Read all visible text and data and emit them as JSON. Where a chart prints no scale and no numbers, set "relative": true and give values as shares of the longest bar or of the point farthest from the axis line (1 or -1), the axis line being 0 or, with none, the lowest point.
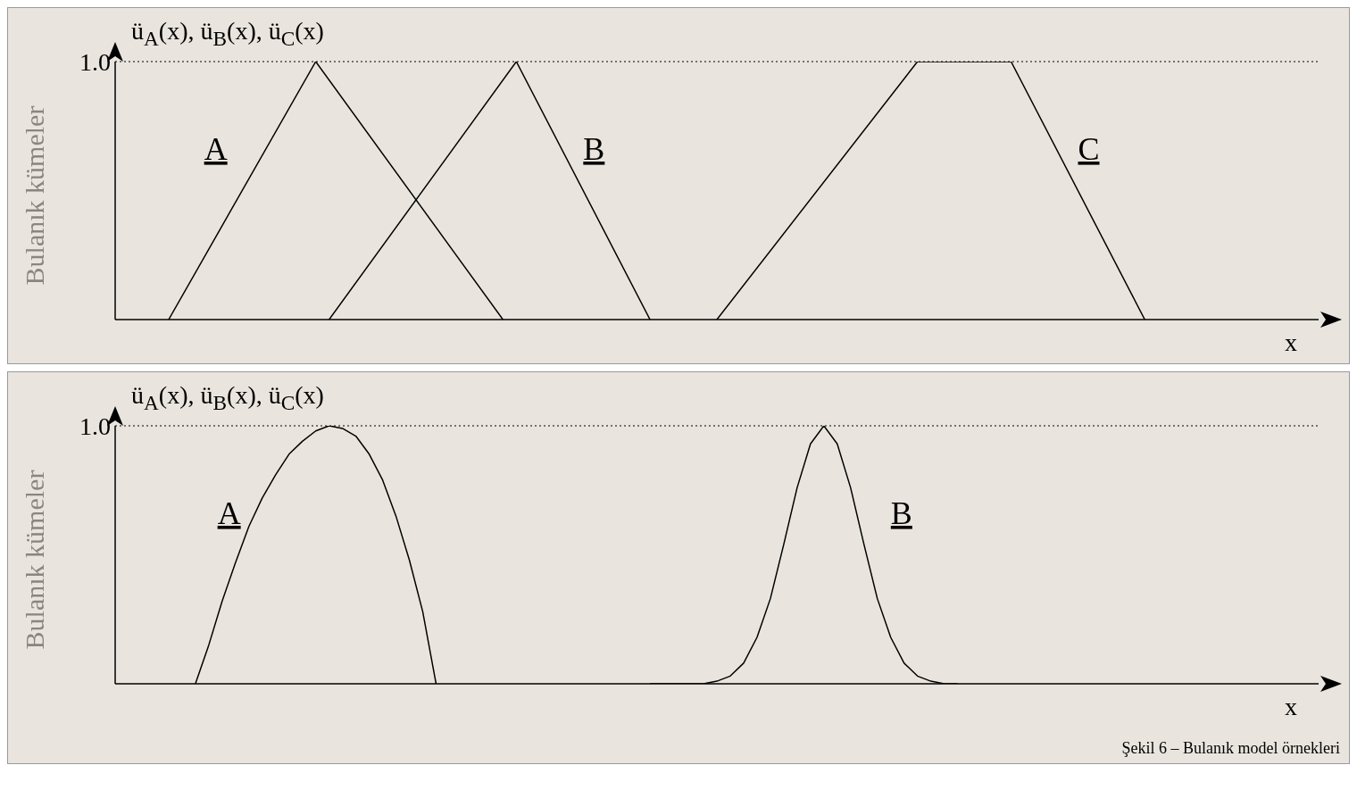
{
  "chart_data": [
    {
      "type": "line",
      "title": "Bulanık kümeler",
      "ylabel": "ü$_{A}$(x), ü$_{B}$(x), ü$_{C}$(x)",
      "xlabel": "x",
      "relative": true,
      "grid": false,
      "legend": false,
      "marker": "none",
      "line_style": "solid",
      "categories": [
        null,
        null,
        null,
        null,
        null,
        null,
        null,
        null,
        null,
        null,
        null,
        null,
        null,
        null,
        null,
        null,
        null,
        null,
        null,
        null,
        null,
        null,
        null,
        null,
        null,
        null,
        null,
        null,
        null,
        null,
        null,
        null,
        null,
        null,
        null,
        null,
        null,
        null,
        null,
        null,
        null,
        null,
        null,
        null,
        null,
        null,
        null,
        null,
        null,
        null,
        null,
        null,
        null,
        null,
        null,
        null,
        null,
        null,
        null,
        null,
        null,
        null,
        null,
        null,
        null,
        null,
        null,
        null,
        null,
        null,
        null,
        null,
        null,
        null,
        null,
        null,
        null,
        null,
        null,
        null,
        null,
        null,
        null,
        null,
        null,
        null,
        null,
        null,
        null,
        null,
        null
      ],
      "ref_lines": [
        {
          "axis": "y",
          "value": 1,
          "label": "1.0",
          "line_style": "dotted",
          "color": "#000000"
        }
      ],
      "series": [
        {
          "name": "A",
          "color": "#000000",
          "values": [
            null,
            null,
            null,
            null,
            0,
            null,
            null,
            null,
            null,
            null,
            null,
            null,
            null,
            null,
            null,
            1,
            null,
            null,
            null,
            null,
            null,
            null,
            null,
            null,
            null,
            null,
            null,
            null,
            null,
            0,
            null,
            null,
            null,
            null,
            null,
            null,
            null,
            null,
            null,
            null,
            null,
            null,
            null,
            null,
            null,
            null,
            null,
            null,
            null,
            null,
            null,
            null,
            null,
            null,
            null,
            null,
            null,
            null,
            null,
            null,
            null,
            null,
            null,
            null,
            null,
            null,
            null,
            null,
            null,
            null,
            null,
            null,
            null,
            null,
            null,
            null,
            null,
            null,
            null,
            null,
            null,
            null,
            null,
            null,
            null,
            null,
            null,
            null,
            null,
            null,
            null
          ]
        },
        {
          "name": "B",
          "color": "#000000",
          "values": [
            null,
            null,
            null,
            null,
            null,
            null,
            null,
            null,
            null,
            null,
            null,
            null,
            null,
            null,
            null,
            null,
            0,
            null,
            null,
            null,
            null,
            null,
            null,
            null,
            null,
            null,
            null,
            null,
            null,
            null,
            1,
            null,
            null,
            null,
            null,
            null,
            null,
            null,
            null,
            null,
            0,
            null,
            null,
            null,
            null,
            null,
            null,
            null,
            null,
            null,
            null,
            null,
            null,
            null,
            null,
            null,
            null,
            null,
            null,
            null,
            null,
            null,
            null,
            null,
            null,
            null,
            null,
            null,
            null,
            null,
            null,
            null,
            null,
            null,
            null,
            null,
            null,
            null,
            null,
            null,
            null,
            null,
            null,
            null,
            null,
            null,
            null,
            null,
            null,
            null,
            null
          ]
        },
        {
          "name": "C",
          "color": "#000000",
          "values": [
            null,
            null,
            null,
            null,
            null,
            null,
            null,
            null,
            null,
            null,
            null,
            null,
            null,
            null,
            null,
            null,
            null,
            null,
            null,
            null,
            null,
            null,
            null,
            null,
            null,
            null,
            null,
            null,
            null,
            null,
            null,
            null,
            null,
            null,
            null,
            null,
            null,
            null,
            null,
            null,
            null,
            null,
            null,
            null,
            null,
            0,
            null,
            null,
            null,
            null,
            null,
            null,
            null,
            null,
            null,
            null,
            null,
            null,
            null,
            null,
            1,
            null,
            null,
            null,
            null,
            null,
            null,
            1,
            null,
            null,
            null,
            null,
            null,
            null,
            null,
            null,
            null,
            0,
            null,
            null,
            null,
            null,
            null,
            null,
            null,
            null,
            null,
            null,
            null,
            null,
            null
          ]
        }
      ]
    },
    {
      "type": "line",
      "title": "Bulanık kümeler",
      "ylabel": "ü$_{A}$(x), ü$_{B}$(x), ü$_{C}$(x)",
      "xlabel": "x",
      "relative": true,
      "grid": false,
      "legend": false,
      "marker": "none",
      "line_style": "solid",
      "annotations": [
        "Şekil 6 – Bulanık model örnekleri"
      ],
      "categories": [
        null,
        null,
        null,
        null,
        null,
        null,
        null,
        null,
        null,
        null,
        null,
        null,
        null,
        null,
        null,
        null,
        null,
        null,
        null,
        null,
        null,
        null,
        null,
        null,
        null,
        null,
        null,
        null,
        null,
        null,
        null,
        null,
        null,
        null,
        null,
        null,
        null,
        null,
        null,
        null,
        null,
        null,
        null,
        null,
        null,
        null,
        null,
        null,
        null,
        null,
        null,
        null,
        null,
        null,
        null,
        null,
        null,
        null,
        null,
        null,
        null,
        null,
        null,
        null,
        null,
        null,
        null,
        null,
        null,
        null,
        null,
        null,
        null,
        null,
        null,
        null,
        null,
        null,
        null,
        null,
        null,
        null,
        null,
        null,
        null,
        null,
        null,
        null,
        null,
        null,
        null
      ],
      "ref_lines": [
        {
          "axis": "y",
          "value": 1,
          "label": "1.0",
          "line_style": "dotted",
          "color": "#000000"
        }
      ],
      "series": [
        {
          "name": "A",
          "color": "#000000",
          "values": [
            null,
            null,
            null,
            null,
            null,
            null,
            0,
            0.15,
            0.32,
            0.47,
            0.61,
            0.72,
            0.81,
            0.89,
            0.94,
            0.98,
            1,
            0.99,
            0.96,
            0.89,
            0.79,
            0.65,
            0.48,
            0.28,
            0,
            null,
            null,
            null,
            null,
            null,
            null,
            null,
            null,
            null,
            null,
            null,
            null,
            null,
            null,
            null,
            null,
            null,
            null,
            null,
            null,
            null,
            null,
            null,
            null,
            null,
            null,
            null,
            null,
            null,
            null,
            null,
            null,
            null,
            null,
            null,
            null,
            null,
            null,
            null,
            null,
            null,
            null,
            null,
            null,
            null,
            null,
            null,
            null,
            null,
            null,
            null,
            null,
            null,
            null,
            null,
            null,
            null,
            null,
            null,
            null,
            null,
            null,
            null,
            null,
            null,
            null
          ]
        },
        {
          "name": "B",
          "color": "#000000",
          "values": [
            null,
            null,
            null,
            null,
            null,
            null,
            null,
            null,
            null,
            null,
            null,
            null,
            null,
            null,
            null,
            null,
            null,
            null,
            null,
            null,
            null,
            null,
            null,
            null,
            null,
            null,
            null,
            null,
            null,
            null,
            null,
            null,
            null,
            null,
            null,
            null,
            null,
            null,
            null,
            null,
            0,
            0,
            0,
            0,
            0,
            0.01,
            0.03,
            0.08,
            0.18,
            0.33,
            0.54,
            0.76,
            0.93,
            1,
            0.93,
            0.76,
            0.54,
            0.33,
            0.18,
            0.08,
            0.03,
            0.01,
            0,
            0,
            null,
            null,
            null,
            null,
            null,
            null,
            null,
            null,
            null,
            null,
            null,
            null,
            null,
            null,
            null,
            null,
            null,
            null,
            null,
            null,
            null,
            null,
            null,
            null,
            null,
            null,
            null
          ]
        }
      ]
    }
  ]
}
